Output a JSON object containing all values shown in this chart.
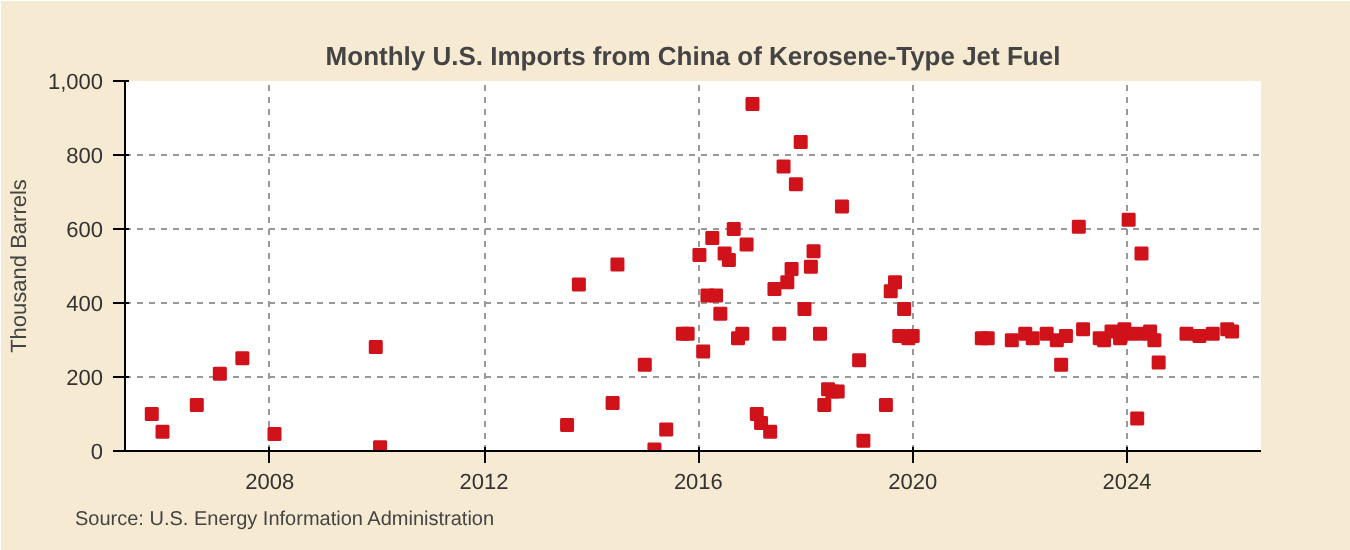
{
  "chart_data": {
    "type": "scatter",
    "title": "Monthly U.S. Imports from China of Kerosene-Type Jet Fuel",
    "ylabel": "Thousand Barrels",
    "annotations": [
      "Source: U.S. Energy Information Administration"
    ],
    "xlim": [
      2005.3,
      2026.5
    ],
    "xticks": [
      2008,
      2012,
      2016,
      2020,
      2024
    ],
    "ylim": [
      0,
      1000
    ],
    "yticks": [
      0,
      200,
      400,
      600,
      800,
      {
        "value": 1000,
        "label": "1,000"
      }
    ],
    "grid": true,
    "marker": "square",
    "series": [
      {
        "color": "#d0121b",
        "x": [
          2005.8,
          2006.0,
          2006.64,
          2007.07,
          2007.49,
          2008.09,
          2009.98,
          2010.06,
          2013.55,
          2013.77,
          2014.4,
          2014.49,
          2015.0,
          2015.18,
          2015.4,
          2015.71,
          2015.8,
          2016.02,
          2016.09,
          2016.17,
          2016.26,
          2016.33,
          2016.41,
          2016.49,
          2016.57,
          2016.66,
          2016.74,
          2016.82,
          2016.9,
          2017.01,
          2017.09,
          2017.17,
          2017.34,
          2017.42,
          2017.51,
          2017.59,
          2017.66,
          2017.74,
          2017.82,
          2017.91,
          2017.98,
          2018.1,
          2018.15,
          2018.27,
          2018.35,
          2018.42,
          2018.5,
          2018.6,
          2018.68,
          2019.0,
          2019.08,
          2019.5,
          2019.59,
          2019.67,
          2019.75,
          2019.84,
          2019.92,
          2020.0,
          2021.29,
          2021.4,
          2021.85,
          2022.1,
          2022.24,
          2022.5,
          2022.69,
          2022.77,
          2022.86,
          2023.1,
          2023.18,
          2023.49,
          2023.57,
          2023.71,
          2023.87,
          2023.95,
          2024.03,
          2024.11,
          2024.19,
          2024.27,
          2024.35,
          2024.43,
          2024.51,
          2024.59,
          2025.11,
          2025.35,
          2025.6,
          2025.87,
          2025.96
        ],
        "values": [
          100,
          52,
          124,
          209,
          251,
          46,
          281,
          10,
          70,
          450,
          130,
          504,
          233,
          4,
          58,
          317,
          317,
          530,
          269,
          420,
          576,
          420,
          371,
          534,
          516,
          600,
          305,
          317,
          558,
          938,
          100,
          76,
          52,
          438,
          317,
          769,
          456,
          492,
          721,
          835,
          384,
          498,
          540,
          317,
          124,
          167,
          161,
          161,
          661,
          245,
          28,
          124,
          432,
          456,
          311,
          384,
          305,
          311,
          305,
          305,
          299,
          317,
          305,
          317,
          299,
          233,
          311,
          606,
          329,
          305,
          299,
          323,
          305,
          329,
          625,
          317,
          88,
          534,
          317,
          323,
          299,
          239,
          317,
          311,
          317,
          329,
          323
        ]
      }
    ]
  }
}
